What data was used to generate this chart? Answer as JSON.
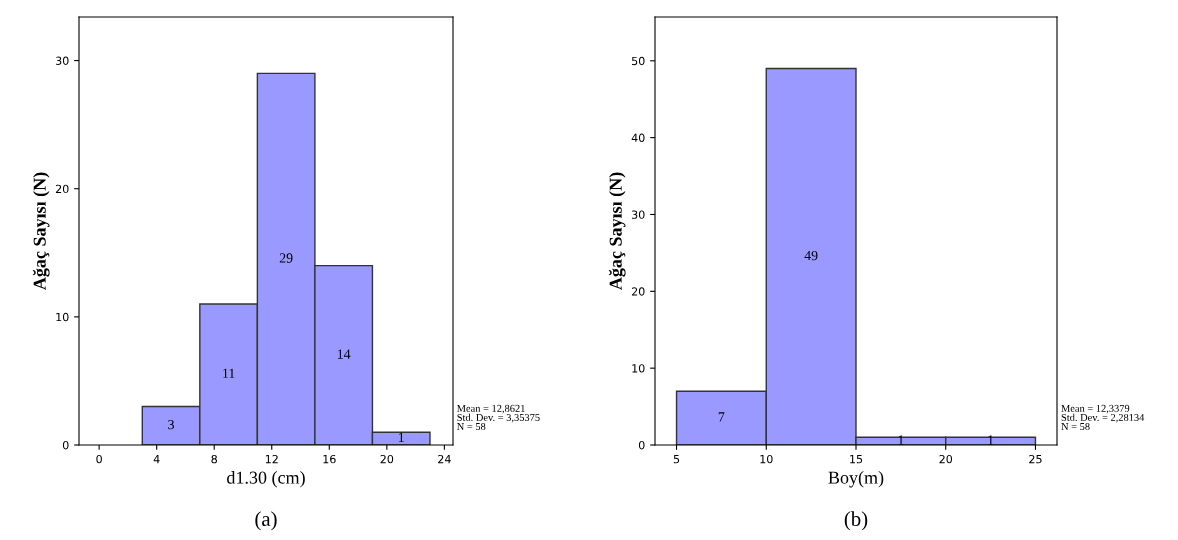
{
  "chart_data": [
    {
      "type": "histogram",
      "xlabel": "d1.30 (cm)",
      "ylabel": "Ağaç Sayısı (N)",
      "bins": [
        3,
        7,
        11,
        15,
        19,
        23
      ],
      "values": [
        3,
        11,
        29,
        14,
        1
      ],
      "color": "#9999ff",
      "data_labels": true,
      "xlim": [
        -1.4,
        24.6
      ],
      "xticks": [
        0,
        4,
        8,
        12,
        16,
        20,
        24
      ],
      "ylim": [
        0,
        33.4
      ],
      "yticks": [
        0,
        10,
        20,
        30
      ],
      "grid": false,
      "annotations": [
        "Mean = 12,8621\nStd. Dev. = 3,35375\nN = 58",
        "(a)"
      ]
    },
    {
      "type": "histogram",
      "xlabel": "Boy(m)",
      "ylabel": "Ağaç Sayısı (N)",
      "bins": [
        5,
        10,
        15,
        20,
        25
      ],
      "values": [
        7,
        49,
        1,
        1
      ],
      "color": "#9999ff",
      "data_labels": true,
      "xlim": [
        3.8,
        26.2
      ],
      "xticks": [
        5,
        10,
        15,
        20,
        25
      ],
      "ylim": [
        0,
        55.7
      ],
      "yticks": [
        0,
        10,
        20,
        30,
        40,
        50
      ],
      "grid": false,
      "annotations": [
        "Mean = 12,3379\nStd. Dev. = 2,28134\nN = 58",
        "(b)"
      ]
    }
  ]
}
